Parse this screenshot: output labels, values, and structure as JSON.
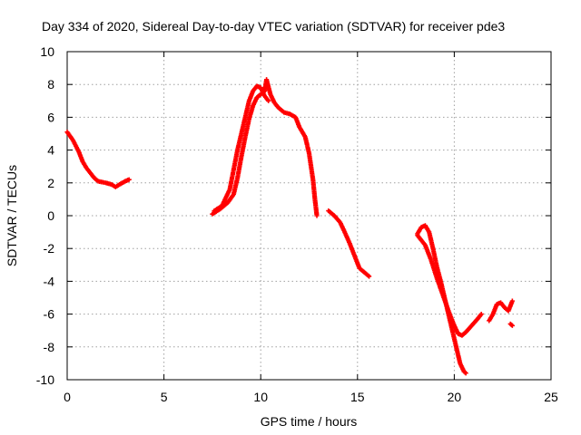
{
  "chart_data": {
    "type": "scatter",
    "title": "Day 334 of 2020, Sidereal Day-to-day VTEC variation (SDTVAR) for receiver pde3",
    "xlabel": "GPS time / hours",
    "ylabel": "SDTVAR / TECUs",
    "xlim": [
      0,
      25
    ],
    "ylim": [
      -10,
      10
    ],
    "x_ticks": [
      0,
      5,
      10,
      15,
      20,
      25
    ],
    "y_ticks": [
      -10,
      -8,
      -6,
      -4,
      -2,
      0,
      2,
      4,
      6,
      8,
      10
    ],
    "grid": true,
    "marker": "plus",
    "color": "#ff0000",
    "series": [
      {
        "segments": [
          [
            [
              0.0,
              5.1
            ],
            [
              0.3,
              4.6
            ],
            [
              0.6,
              3.9
            ],
            [
              0.8,
              3.3
            ],
            [
              1.0,
              2.9
            ],
            [
              1.2,
              2.6
            ],
            [
              1.4,
              2.3
            ],
            [
              1.6,
              2.1
            ],
            [
              2.0,
              2.0
            ],
            [
              2.3,
              1.9
            ],
            [
              2.5,
              1.75
            ],
            [
              2.7,
              1.9
            ],
            [
              3.0,
              2.1
            ],
            [
              3.2,
              2.2
            ]
          ],
          [
            [
              7.5,
              0.1
            ],
            [
              7.9,
              0.4
            ],
            [
              8.3,
              0.8
            ],
            [
              8.6,
              1.3
            ],
            [
              8.8,
              2.3
            ],
            [
              9.0,
              3.6
            ],
            [
              9.2,
              4.8
            ],
            [
              9.4,
              5.9
            ],
            [
              9.6,
              6.7
            ],
            [
              9.8,
              7.2
            ],
            [
              10.0,
              7.4
            ],
            [
              10.2,
              7.6
            ],
            [
              10.3,
              8.3
            ],
            [
              10.5,
              7.4
            ],
            [
              10.7,
              6.9
            ],
            [
              10.9,
              6.6
            ],
            [
              11.2,
              6.3
            ],
            [
              11.5,
              6.2
            ],
            [
              11.8,
              6.0
            ],
            [
              12.0,
              5.4
            ],
            [
              12.3,
              4.8
            ],
            [
              12.5,
              3.8
            ],
            [
              12.7,
              2.2
            ],
            [
              12.8,
              1.0
            ],
            [
              12.9,
              0.0
            ]
          ],
          [
            [
              7.6,
              0.3
            ],
            [
              8.0,
              0.6
            ],
            [
              8.4,
              1.6
            ],
            [
              8.6,
              2.8
            ],
            [
              8.8,
              4.0
            ],
            [
              9.0,
              5.0
            ],
            [
              9.2,
              6.0
            ],
            [
              9.4,
              7.0
            ],
            [
              9.6,
              7.6
            ],
            [
              9.8,
              7.9
            ],
            [
              10.0,
              7.8
            ],
            [
              10.2,
              7.3
            ],
            [
              10.4,
              7.0
            ]
          ],
          [
            [
              13.5,
              0.3
            ],
            [
              13.8,
              0.0
            ],
            [
              14.1,
              -0.4
            ],
            [
              14.3,
              -0.9
            ],
            [
              14.6,
              -1.7
            ],
            [
              14.9,
              -2.6
            ],
            [
              15.1,
              -3.2
            ],
            [
              15.4,
              -3.5
            ],
            [
              15.6,
              -3.7
            ]
          ],
          [
            [
              18.1,
              -1.1
            ],
            [
              18.3,
              -0.7
            ],
            [
              18.5,
              -0.6
            ],
            [
              18.7,
              -1.0
            ],
            [
              18.9,
              -2.0
            ],
            [
              19.1,
              -3.1
            ],
            [
              19.3,
              -4.0
            ],
            [
              19.5,
              -5.0
            ],
            [
              19.7,
              -6.0
            ],
            [
              19.9,
              -7.0
            ],
            [
              20.1,
              -8.0
            ],
            [
              20.3,
              -9.0
            ],
            [
              20.5,
              -9.5
            ],
            [
              20.6,
              -9.6
            ]
          ],
          [
            [
              18.1,
              -1.2
            ],
            [
              18.5,
              -1.8
            ],
            [
              18.8,
              -2.7
            ],
            [
              19.1,
              -3.8
            ],
            [
              19.4,
              -4.8
            ],
            [
              19.7,
              -5.8
            ],
            [
              20.0,
              -6.7
            ],
            [
              20.2,
              -7.2
            ],
            [
              20.4,
              -7.3
            ],
            [
              20.6,
              -7.1
            ],
            [
              20.9,
              -6.7
            ],
            [
              21.2,
              -6.3
            ],
            [
              21.4,
              -6.0
            ]
          ],
          [
            [
              21.8,
              -6.4
            ],
            [
              22.0,
              -6.0
            ],
            [
              22.2,
              -5.4
            ],
            [
              22.4,
              -5.3
            ],
            [
              22.6,
              -5.6
            ],
            [
              22.8,
              -5.8
            ],
            [
              23.0,
              -5.2
            ]
          ],
          [
            [
              22.9,
              -6.6
            ],
            [
              23.0,
              -6.7
            ]
          ]
        ]
      }
    ]
  }
}
